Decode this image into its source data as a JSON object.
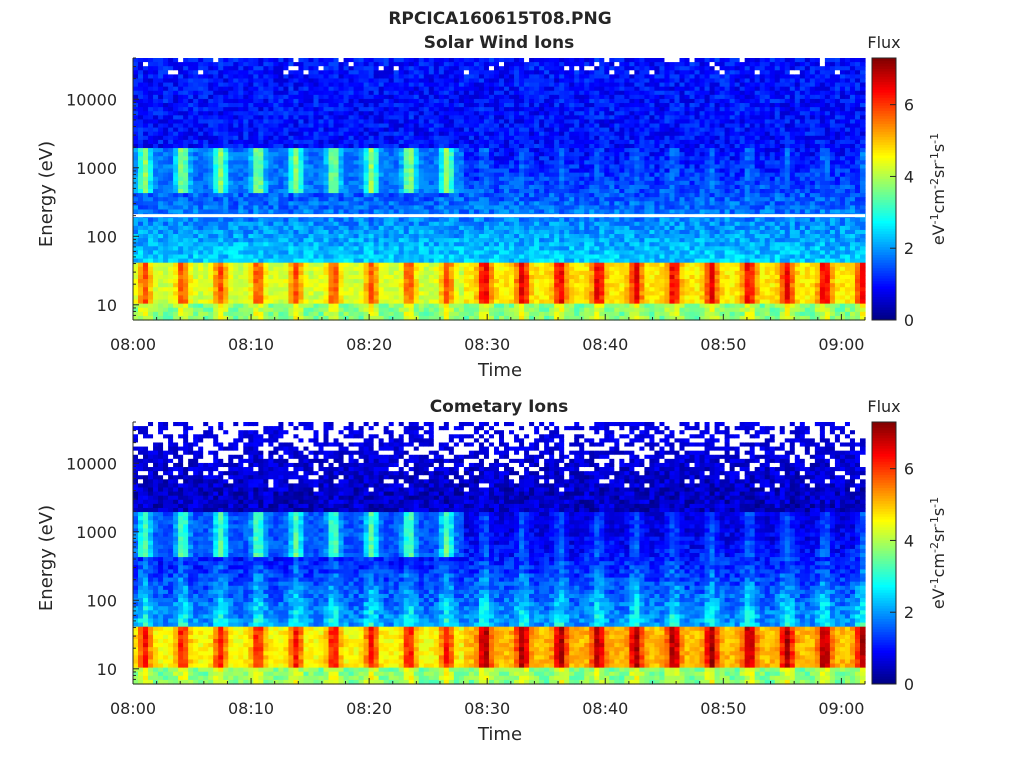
{
  "figure": {
    "title": "RPCICA160615T08.PNG"
  },
  "chart_data": [
    {
      "type": "heatmap",
      "title": "Solar Wind Ions",
      "xlabel": "Time",
      "ylabel": "Energy (eV)",
      "y_scale": "log",
      "ylim": [
        6,
        40000
      ],
      "xlim": [
        "08:00",
        "09:02"
      ],
      "x_ticks": [
        "08:00",
        "08:10",
        "08:20",
        "08:30",
        "08:40",
        "08:50",
        "09:00"
      ],
      "y_ticks": [
        "10",
        "100",
        "1000",
        "10000"
      ],
      "colorbar": {
        "label": "Flux",
        "units": "eV-1cm-2sr-1s-1",
        "range": [
          0,
          7.3
        ],
        "ticks": [
          "0",
          "2",
          "4",
          "6"
        ],
        "colormap": "jet"
      },
      "features": {
        "low_energy_peak_flux": 6.5,
        "low_energy_band_eV": [
          12,
          35
        ],
        "mid_energy_band_eV": [
          400,
          2000
        ],
        "mid_energy_band_flux": 3.8,
        "background_high_energy_flux": 1.0,
        "masked_energy_level_eV": 200,
        "pulse_period_minutes": 3.2
      }
    },
    {
      "type": "heatmap",
      "title": "Cometary Ions",
      "xlabel": "Time",
      "ylabel": "Energy (eV)",
      "y_scale": "log",
      "ylim": [
        6,
        40000
      ],
      "xlim": [
        "08:00",
        "09:02"
      ],
      "x_ticks": [
        "08:00",
        "08:10",
        "08:20",
        "08:30",
        "08:40",
        "08:50",
        "09:00"
      ],
      "y_ticks": [
        "10",
        "100",
        "1000",
        "10000"
      ],
      "colorbar": {
        "label": "Flux",
        "units": "eV-1cm-2sr-1s-1",
        "range": [
          0,
          7.3
        ],
        "ticks": [
          "0",
          "2",
          "4",
          "6"
        ],
        "colormap": "jet"
      },
      "features": {
        "low_energy_peak_flux": 7.0,
        "low_energy_band_eV": [
          12,
          35
        ],
        "mid_energy_band_eV": [
          400,
          2000
        ],
        "mid_energy_band_flux": 3.3,
        "background_high_energy_flux": 0.5,
        "masked_energy_level_eV": null,
        "pulse_period_minutes": 3.2
      }
    }
  ]
}
